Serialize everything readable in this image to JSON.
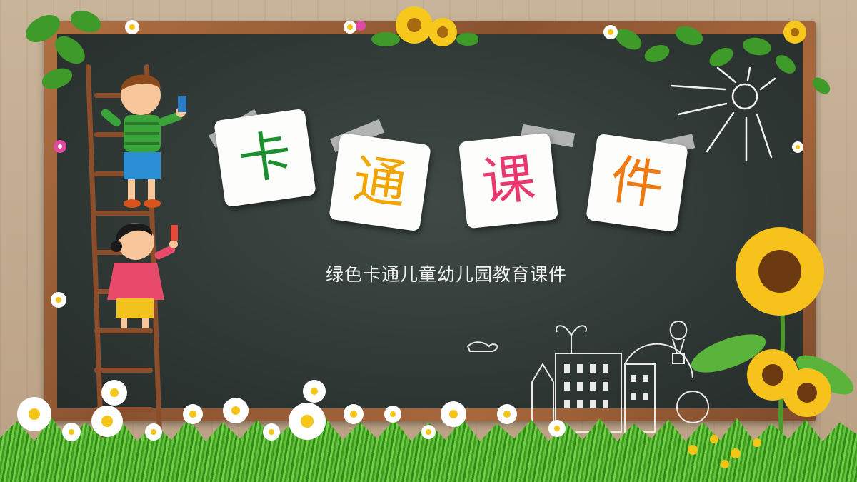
{
  "title_chars": [
    {
      "char": "卡",
      "color": "#1e8f2e"
    },
    {
      "char": "通",
      "color": "#f2a500"
    },
    {
      "char": "课",
      "color": "#e8386d"
    },
    {
      "char": "件",
      "color": "#f07a12"
    }
  ],
  "subtitle": "绿色卡通儿童幼儿园教育课件",
  "colors": {
    "chalkboard": "#313a37",
    "frame": "#8a5330",
    "wall": "#c8b49a"
  },
  "decorations": [
    "ladder",
    "boy-painting",
    "girl-painting",
    "sunflower",
    "daisies",
    "grass",
    "chalk-sun",
    "chalk-city",
    "leafy-vine"
  ]
}
